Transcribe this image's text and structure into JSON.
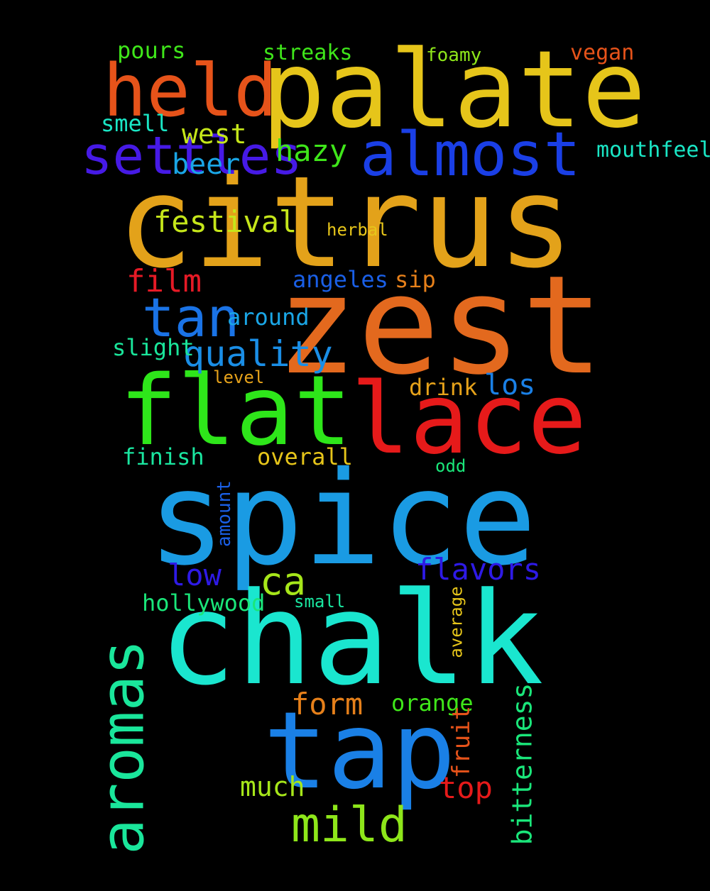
{
  "words": [
    {
      "id": "citrus",
      "text": "citrus",
      "color": "#e3a21a"
    },
    {
      "id": "zest",
      "text": "zest",
      "color": "#e3691e"
    },
    {
      "id": "spice",
      "text": "spice",
      "color": "#1a9be3"
    },
    {
      "id": "chalk",
      "text": "chalk",
      "color": "#1ae6cf"
    },
    {
      "id": "palate",
      "text": "palate",
      "color": "#e6c51a"
    },
    {
      "id": "flat",
      "text": "flat",
      "color": "#2ee61a"
    },
    {
      "id": "lace",
      "text": "lace",
      "color": "#e61a1a"
    },
    {
      "id": "tap",
      "text": "tap",
      "color": "#1a80e6"
    },
    {
      "id": "held",
      "text": "held",
      "color": "#e6531a"
    },
    {
      "id": "almost",
      "text": "almost",
      "color": "#1a3fe6"
    },
    {
      "id": "mild",
      "text": "mild",
      "color": "#8ee61a"
    },
    {
      "id": "settles",
      "text": "settles",
      "color": "#461ae6"
    },
    {
      "id": "tan",
      "text": "tan",
      "color": "#1a73e6"
    },
    {
      "id": "ca",
      "text": "ca",
      "color": "#a6e61a"
    },
    {
      "id": "quality",
      "text": "quality",
      "color": "#1a8ee6"
    },
    {
      "id": "film",
      "text": "film",
      "color": "#e61a26"
    },
    {
      "id": "flavors",
      "text": "flavors",
      "color": "#2e1ae6"
    },
    {
      "id": "festival",
      "text": "festival",
      "color": "#c5e61a"
    },
    {
      "id": "hazy",
      "text": "hazy",
      "color": "#3fe61a"
    },
    {
      "id": "west",
      "text": "west",
      "color": "#c5e61a"
    },
    {
      "id": "beer",
      "text": "beer",
      "color": "#1aa6e6"
    },
    {
      "id": "los",
      "text": "los",
      "color": "#1a80e6"
    },
    {
      "id": "low",
      "text": "low",
      "color": "#2e1ae6"
    },
    {
      "id": "top",
      "text": "top",
      "color": "#e61a1a"
    },
    {
      "id": "form",
      "text": "form",
      "color": "#e6801a"
    },
    {
      "id": "much",
      "text": "much",
      "color": "#a6e61a"
    },
    {
      "id": "orange",
      "text": "orange",
      "color": "#3fe61a"
    },
    {
      "id": "angeles",
      "text": "angeles",
      "color": "#1a5fe6"
    },
    {
      "id": "sip",
      "text": "sip",
      "color": "#e6801a"
    },
    {
      "id": "around",
      "text": "around",
      "color": "#1aa6e6"
    },
    {
      "id": "overall",
      "text": "overall",
      "color": "#e6c51a"
    },
    {
      "id": "finish",
      "text": "finish",
      "color": "#1ae6a0"
    },
    {
      "id": "drink",
      "text": "drink",
      "color": "#e6a21a"
    },
    {
      "id": "slight",
      "text": "slight",
      "color": "#1ae69b"
    },
    {
      "id": "hollywood",
      "text": "hollywood",
      "color": "#1ae67a"
    },
    {
      "id": "smell",
      "text": "smell",
      "color": "#1ae6c5"
    },
    {
      "id": "pours",
      "text": "pours",
      "color": "#3fe61a"
    },
    {
      "id": "streaks",
      "text": "streaks",
      "color": "#3fe61a"
    },
    {
      "id": "foamy",
      "text": "foamy",
      "color": "#8ee61a"
    },
    {
      "id": "vegan",
      "text": "vegan",
      "color": "#e6531a"
    },
    {
      "id": "mouthfeel",
      "text": "mouthfeel",
      "color": "#1ae6c5"
    },
    {
      "id": "herbal",
      "text": "herbal",
      "color": "#e6c51a"
    },
    {
      "id": "level",
      "text": "level",
      "color": "#e6a21a"
    },
    {
      "id": "odd",
      "text": "odd",
      "color": "#1ae67a"
    },
    {
      "id": "small",
      "text": "small",
      "color": "#1ae6a0"
    },
    {
      "id": "aromas",
      "text": "aromas",
      "color": "#1ae69b"
    },
    {
      "id": "bitterness",
      "text": "bitterness",
      "color": "#1ae67a"
    },
    {
      "id": "fruit",
      "text": "fruit",
      "color": "#e6531a"
    },
    {
      "id": "amount",
      "text": "amount",
      "color": "#1a5fe6"
    },
    {
      "id": "average",
      "text": "average",
      "color": "#e6c51a"
    }
  ]
}
